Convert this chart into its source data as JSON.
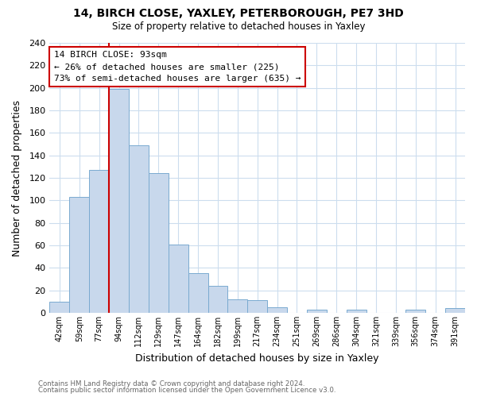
{
  "title": "14, BIRCH CLOSE, YAXLEY, PETERBOROUGH, PE7 3HD",
  "subtitle": "Size of property relative to detached houses in Yaxley",
  "xlabel": "Distribution of detached houses by size in Yaxley",
  "ylabel": "Number of detached properties",
  "bin_labels": [
    "42sqm",
    "59sqm",
    "77sqm",
    "94sqm",
    "112sqm",
    "129sqm",
    "147sqm",
    "164sqm",
    "182sqm",
    "199sqm",
    "217sqm",
    "234sqm",
    "251sqm",
    "269sqm",
    "286sqm",
    "304sqm",
    "321sqm",
    "339sqm",
    "356sqm",
    "374sqm",
    "391sqm"
  ],
  "bar_heights": [
    10,
    103,
    127,
    199,
    149,
    124,
    61,
    35,
    24,
    12,
    11,
    5,
    0,
    3,
    0,
    3,
    0,
    0,
    3,
    0,
    4
  ],
  "bar_color": "#c8d8ec",
  "bar_edge_color": "#7aaad0",
  "vline_x_index": 3,
  "vline_color": "#cc0000",
  "annotation_title": "14 BIRCH CLOSE: 93sqm",
  "annotation_line1": "← 26% of detached houses are smaller (225)",
  "annotation_line2": "73% of semi-detached houses are larger (635) →",
  "annotation_box_color": "#ffffff",
  "annotation_box_edge": "#cc0000",
  "ylim": [
    0,
    240
  ],
  "yticks": [
    0,
    20,
    40,
    60,
    80,
    100,
    120,
    140,
    160,
    180,
    200,
    220,
    240
  ],
  "footer1": "Contains HM Land Registry data © Crown copyright and database right 2024.",
  "footer2": "Contains public sector information licensed under the Open Government Licence v3.0.",
  "background_color": "#ffffff",
  "grid_color": "#ccddee"
}
